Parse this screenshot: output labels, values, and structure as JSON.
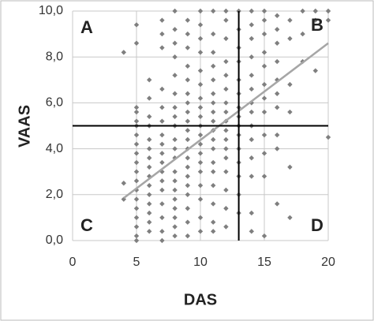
{
  "chart_data": {
    "type": "scatter",
    "x_label": "DAS",
    "y_label": "VAAS",
    "annotations": [
      "A",
      "B",
      "C",
      "D"
    ],
    "xlim": [
      0,
      20
    ],
    "xticks": [
      0,
      5,
      10,
      15,
      20
    ],
    "ylim": [
      0,
      10
    ],
    "yticks": [
      {
        "value": 0,
        "label": "0,0"
      },
      {
        "value": 2,
        "label": "2,0"
      },
      {
        "value": 4,
        "label": "4,0"
      },
      {
        "value": 6,
        "label": "6,0"
      },
      {
        "value": 8,
        "label": "8,0"
      },
      {
        "value": 10,
        "label": "10,0"
      }
    ],
    "grid": true,
    "color": "#7f7f7f",
    "vline": 13,
    "hline": 5,
    "trendline": {
      "x": [
        4,
        20
      ],
      "y": [
        1.85,
        8.6
      ],
      "color": "#a6a6a6"
    },
    "x": [
      4,
      4,
      4,
      5,
      5,
      5,
      5,
      5,
      5,
      5,
      5,
      5,
      5,
      5,
      5,
      5,
      5,
      5,
      5,
      5,
      5,
      5,
      6,
      6,
      6,
      6,
      6,
      6,
      6,
      6,
      6,
      6,
      6,
      6,
      6,
      6,
      6,
      7,
      7,
      7,
      7,
      7,
      7,
      7,
      7,
      7,
      7,
      7,
      7,
      7,
      7,
      7,
      7,
      7,
      8,
      8,
      8,
      8,
      8,
      8,
      8,
      8,
      8,
      8,
      8,
      8,
      8,
      8,
      8,
      8,
      8,
      8,
      8,
      8,
      9,
      9,
      9,
      9,
      9,
      9,
      9,
      9,
      9,
      9,
      9,
      9,
      9,
      9,
      9,
      9,
      9,
      9,
      9,
      9,
      10,
      10,
      10,
      10,
      10,
      10,
      10,
      10,
      10,
      10,
      10,
      10,
      10,
      10,
      10,
      10,
      10,
      10,
      10,
      11,
      11,
      11,
      11,
      11,
      11,
      11,
      11,
      11,
      11,
      11,
      11,
      11,
      11,
      11,
      11,
      11,
      11,
      12,
      12,
      12,
      12,
      12,
      12,
      12,
      12,
      12,
      12,
      12,
      12,
      12,
      12,
      12,
      12,
      12,
      13,
      13,
      13,
      13,
      13,
      13,
      13,
      13,
      13,
      13,
      13,
      13,
      13,
      13,
      13,
      14,
      14,
      14,
      14,
      14,
      14,
      14,
      14,
      14,
      14,
      14,
      14,
      14,
      14,
      15,
      15,
      15,
      15,
      15,
      15,
      15,
      15,
      15,
      15,
      15,
      15,
      16,
      16,
      16,
      16,
      16,
      16,
      16,
      16,
      16,
      16,
      17,
      17,
      17,
      17,
      17,
      17,
      18,
      18,
      18,
      19,
      19,
      19,
      20,
      20,
      20
    ],
    "values": [
      8.2,
      2.5,
      1.8,
      9.4,
      8.6,
      5.8,
      5.6,
      5.2,
      5.0,
      4.6,
      4.2,
      3.8,
      3.4,
      3.0,
      2.6,
      2.2,
      1.8,
      1.4,
      1.0,
      0.6,
      0.2,
      0,
      7.0,
      6.2,
      5.4,
      5.0,
      4.4,
      4.0,
      3.6,
      3.2,
      2.8,
      2.4,
      2.0,
      1.6,
      1.2,
      0.8,
      0.4,
      9.6,
      9.0,
      8.4,
      6.6,
      5.8,
      5.2,
      4.6,
      4.2,
      3.8,
      3.4,
      3.0,
      2.6,
      2.2,
      1.6,
      1.0,
      0.4,
      0,
      10,
      9.2,
      8.6,
      8.0,
      7.2,
      6.4,
      5.8,
      5.4,
      5.0,
      4.4,
      4.0,
      3.6,
      3.0,
      2.6,
      2.2,
      1.8,
      1.4,
      1.0,
      0.6,
      0.2,
      9.6,
      9.0,
      8.4,
      7.6,
      7.0,
      6.4,
      6.0,
      5.6,
      5.2,
      4.8,
      4.4,
      4.0,
      3.6,
      3.2,
      2.8,
      2.4,
      2.0,
      1.4,
      0.8,
      0.2,
      10,
      9.4,
      8.8,
      8.2,
      7.4,
      6.8,
      6.2,
      5.8,
      5.4,
      5.0,
      4.6,
      4.2,
      3.8,
      3.4,
      3.0,
      2.4,
      1.8,
      1.0,
      0.4,
      10,
      9.0,
      8.2,
      7.6,
      7.0,
      6.4,
      6.0,
      5.6,
      5.2,
      4.8,
      4.4,
      4.0,
      3.4,
      3.0,
      2.4,
      1.6,
      0.8,
      0.4,
      10,
      9.6,
      8.8,
      7.8,
      7.2,
      6.6,
      6.0,
      5.6,
      5.2,
      4.8,
      4.4,
      4.0,
      3.6,
      3.0,
      2.2,
      1.4,
      0.6,
      10,
      9.2,
      8.4,
      7.8,
      7.0,
      6.4,
      5.8,
      5.4,
      5.0,
      4.6,
      4.0,
      3.4,
      2.8,
      2.0,
      1.2,
      10,
      9.4,
      8.8,
      8.0,
      7.2,
      6.6,
      6.0,
      5.6,
      5.0,
      4.4,
      3.6,
      2.8,
      1.2,
      0.4,
      10,
      9.6,
      9.0,
      8.2,
      7.6,
      6.8,
      6.2,
      5.6,
      4.6,
      3.8,
      2.8,
      0.2,
      9.8,
      9.2,
      8.6,
      7.8,
      7.0,
      6.4,
      5.8,
      4.6,
      4.0,
      1.6,
      9.6,
      8.8,
      6.8,
      5.6,
      3.2,
      1.0,
      10,
      9.0,
      7.8,
      10,
      9.6,
      7.4,
      10,
      9.6,
      4.5
    ]
  }
}
